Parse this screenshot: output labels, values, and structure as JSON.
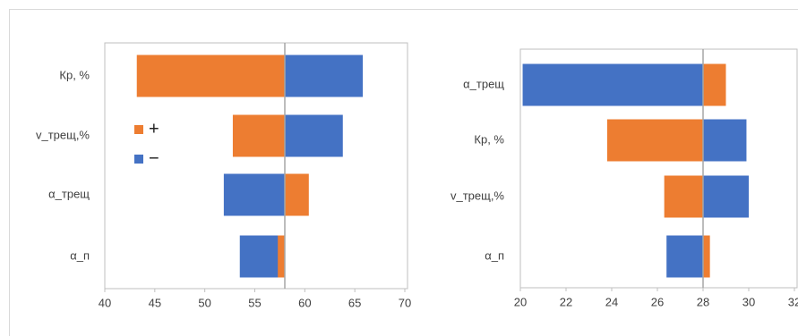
{
  "chart_data": [
    {
      "type": "tornado",
      "categories": [
        "Кр, %",
        "v_трещ,%",
        "α_трещ",
        "α_п"
      ],
      "base": 58,
      "series": [
        {
          "name": "+",
          "color": "#ed7d31",
          "values": [
            43.2,
            52.8,
            60.4,
            57.3
          ]
        },
        {
          "name": "−",
          "color": "#4472c4",
          "values": [
            65.8,
            63.8,
            51.9,
            53.5
          ]
        }
      ],
      "xlim": [
        40,
        70
      ],
      "xticks": [
        40,
        45,
        50,
        55,
        60,
        65,
        70
      ],
      "legend": true
    },
    {
      "type": "tornado",
      "categories": [
        "α_трещ",
        "Кр, %",
        "v_трещ,%",
        "α_п"
      ],
      "base": 28,
      "series": [
        {
          "color": "#ed7d31",
          "values": [
            29.0,
            23.8,
            26.3,
            28.3
          ]
        },
        {
          "color": "#4472c4",
          "values": [
            20.1,
            29.9,
            30.0,
            26.4
          ]
        }
      ],
      "xlim": [
        20,
        32
      ],
      "xticks": [
        20,
        22,
        24,
        26,
        28,
        30,
        32
      ],
      "legend": false
    }
  ]
}
